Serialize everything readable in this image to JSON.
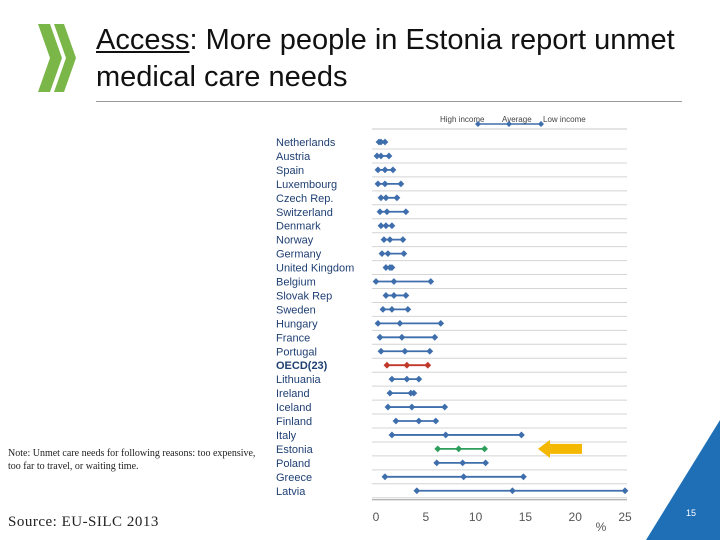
{
  "header": {
    "title_prefix": "Access",
    "title_rest": ": More people in Estonia report unmet medical care needs"
  },
  "note": "Note: Unmet care needs for following reasons: too expensive, too far to travel, or waiting time.",
  "source": "Source: EU-SILC 2013",
  "page_number": "15",
  "colors": {
    "series": "#3f6eac",
    "oecd": "#c0392b",
    "estonia": "#2e9e5b",
    "arrow": "#f5b800",
    "logo": "#7ab648",
    "corner": "#1f6fb7"
  },
  "chart_data": {
    "type": "dot-range",
    "unit": "%",
    "xlabel": "%",
    "xlim": [
      0,
      25
    ],
    "xticks": [
      0,
      5,
      10,
      15,
      20,
      25
    ],
    "legend": [
      "High income",
      "Average",
      "Low income"
    ],
    "categories": [
      "Netherlands",
      "Austria",
      "Spain",
      "Luxembourg",
      "Czech Rep.",
      "Switzerland",
      "Denmark",
      "Norway",
      "Germany",
      "United Kingdom",
      "Belgium",
      "Slovak Rep",
      "Sweden",
      "Hungary",
      "France",
      "Portugal",
      "OECD(23)",
      "Lithuania",
      "Ireland",
      "Iceland",
      "Finland",
      "Italy",
      "Estonia",
      "Poland",
      "Greece",
      "Latvia"
    ],
    "series": [
      {
        "name": "High income",
        "values": [
          0.3,
          0.1,
          0.2,
          0.2,
          0.5,
          0.4,
          0.5,
          0.8,
          0.6,
          1.0,
          0.0,
          1.0,
          0.7,
          0.2,
          0.4,
          0.5,
          1.1,
          1.6,
          1.4,
          1.2,
          2.0,
          1.6,
          6.2,
          6.1,
          0.9,
          4.1
        ]
      },
      {
        "name": "Average",
        "values": [
          0.5,
          0.5,
          0.9,
          0.9,
          1.0,
          1.1,
          1.0,
          1.4,
          1.2,
          1.4,
          1.8,
          1.8,
          1.6,
          2.4,
          2.6,
          2.9,
          3.1,
          3.1,
          3.5,
          3.6,
          4.3,
          7.0,
          8.3,
          8.7,
          8.8,
          13.7
        ]
      },
      {
        "name": "Low income",
        "values": [
          0.9,
          1.3,
          1.7,
          2.5,
          2.1,
          3.0,
          1.6,
          2.7,
          2.8,
          1.6,
          5.5,
          3.0,
          3.2,
          6.5,
          5.9,
          5.4,
          5.2,
          4.3,
          3.8,
          6.9,
          6.0,
          14.6,
          10.9,
          11.0,
          14.8,
          25.0
        ]
      }
    ],
    "highlight": {
      "OECD(23)": "oecd",
      "Estonia": "estonia"
    }
  }
}
